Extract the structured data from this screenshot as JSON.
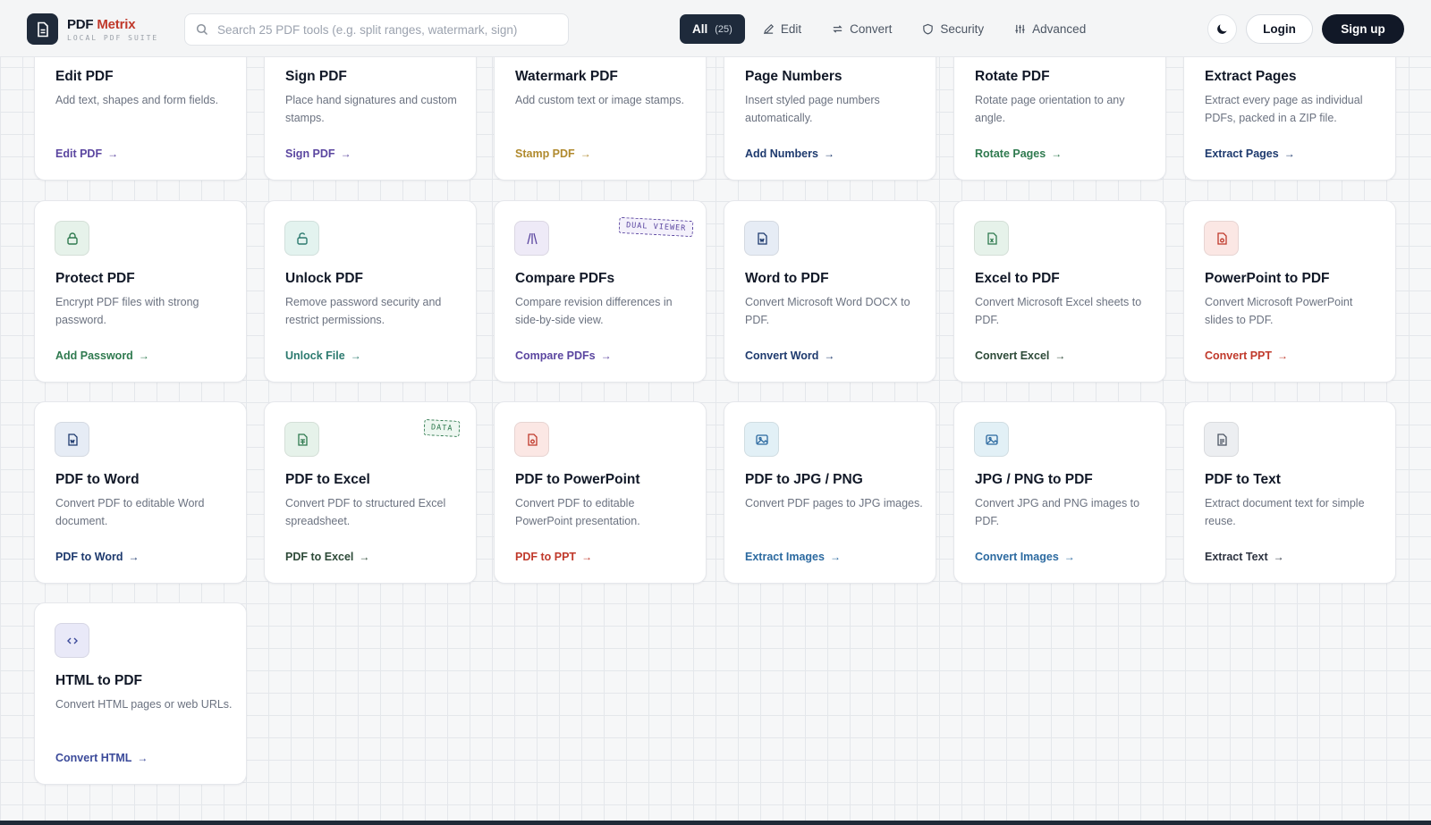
{
  "app": {
    "brand_main": "PDF",
    "brand_accent": "Metrix",
    "tagline": "LOCAL PDF SUITE"
  },
  "search": {
    "placeholder": "Search 25 PDF tools (e.g. split ranges, watermark, sign)"
  },
  "nav": {
    "all_label": "All",
    "all_count": "(25)",
    "edit_label": "Edit",
    "convert_label": "Convert",
    "security_label": "Security",
    "advanced_label": "Advanced"
  },
  "header": {
    "login_label": "Login",
    "signup_label": "Sign up",
    "theme_icon": "moon-icon"
  },
  "colors": {
    "primary": "#1e2a3b",
    "purple": "#5b46a0",
    "gold": "#b08a2e",
    "navy": "#1e3a6e",
    "green": "#2f7a4f",
    "teal": "#2c7a6f",
    "red": "#c0392b",
    "blue": "#2c6aa0",
    "dark": "#2d3340"
  },
  "cards": [
    {
      "title": "Edit PDF",
      "desc": "Add text, shapes and form fields.",
      "link": "Edit PDF",
      "icon": "edit-icon"
    },
    {
      "title": "Sign PDF",
      "desc": "Place hand signatures and custom stamps.",
      "link": "Sign PDF",
      "icon": "signature-icon"
    },
    {
      "title": "Watermark PDF",
      "desc": "Add custom text or image stamps.",
      "link": "Stamp PDF",
      "icon": "watermark-icon"
    },
    {
      "title": "Page Numbers",
      "desc": "Insert styled page numbers automatically.",
      "link": "Add Numbers",
      "icon": "hash-icon"
    },
    {
      "title": "Rotate PDF",
      "desc": "Rotate page orientation to any angle.",
      "link": "Rotate Pages",
      "icon": "rotate-icon"
    },
    {
      "title": "Extract Pages",
      "desc": "Extract every page as individual PDFs, packed in a ZIP file.",
      "link": "Extract Pages",
      "icon": "extract-icon"
    },
    {
      "title": "Protect PDF",
      "desc": "Encrypt PDF files with strong password.",
      "link": "Add Password",
      "icon": "lock-icon"
    },
    {
      "title": "Unlock PDF",
      "desc": "Remove password security and restrict permissions.",
      "link": "Unlock File",
      "icon": "unlock-icon"
    },
    {
      "title": "Compare PDFs",
      "desc": "Compare revision differences in side-by-side view.",
      "link": "Compare PDFs",
      "icon": "compare-icon",
      "badge": "DUAL VIEWER"
    },
    {
      "title": "Word to PDF",
      "desc": "Convert Microsoft Word DOCX to PDF.",
      "link": "Convert Word",
      "icon": "word-file-icon"
    },
    {
      "title": "Excel to PDF",
      "desc": "Convert Microsoft Excel sheets to PDF.",
      "link": "Convert Excel",
      "icon": "excel-file-icon"
    },
    {
      "title": "PowerPoint to PDF",
      "desc": "Convert Microsoft PowerPoint slides to PDF.",
      "link": "Convert PPT",
      "icon": "powerpoint-file-icon"
    },
    {
      "title": "PDF to Word",
      "desc": "Convert PDF to editable Word document.",
      "link": "PDF to Word",
      "icon": "word-file-icon"
    },
    {
      "title": "PDF to Excel",
      "desc": "Convert PDF to structured Excel spreadsheet.",
      "link": "PDF to Excel",
      "icon": "spreadsheet-file-icon",
      "badge": "DATA"
    },
    {
      "title": "PDF to PowerPoint",
      "desc": "Convert PDF to editable PowerPoint presentation.",
      "link": "PDF to PPT",
      "icon": "powerpoint-file-icon"
    },
    {
      "title": "PDF to JPG / PNG",
      "desc": "Convert PDF pages to JPG images.",
      "link": "Extract Images",
      "icon": "image-icon"
    },
    {
      "title": "JPG / PNG to PDF",
      "desc": "Convert JPG and PNG images to PDF.",
      "link": "Convert Images",
      "icon": "image-icon"
    },
    {
      "title": "PDF to Text",
      "desc": "Extract document text for simple reuse.",
      "link": "Extract Text",
      "icon": "text-file-icon"
    },
    {
      "title": "HTML to PDF",
      "desc": "Convert HTML pages or web URLs.",
      "link": "Convert HTML",
      "icon": "code-icon"
    }
  ]
}
